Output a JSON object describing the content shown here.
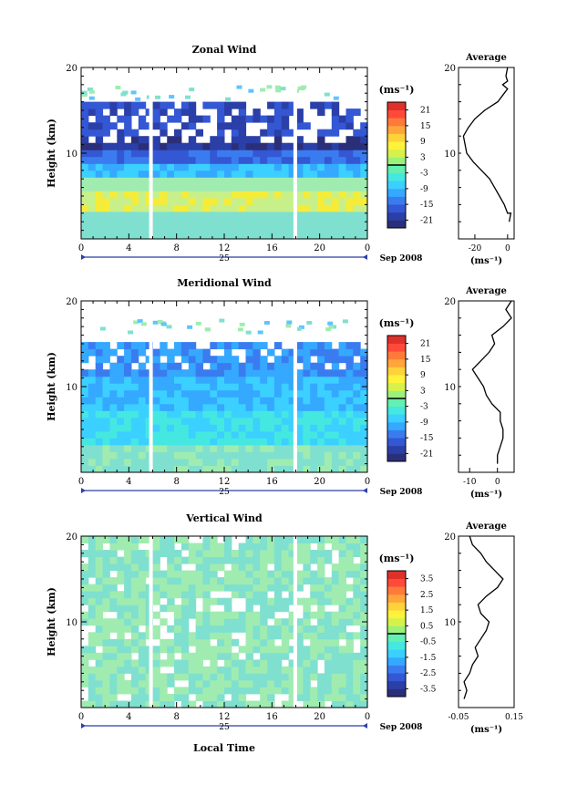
{
  "figure": {
    "xlabel": "Local Time",
    "date_label": "Sep 2008",
    "day_label": "25",
    "unit_label": "(ms⁻¹)",
    "average_title": "Average",
    "ylabel": "Height (km)",
    "fill_colors": [
      "#5fc4ff",
      "#7fe0d0",
      "#a0ecb0",
      "#c7f08a",
      "#f5ec3a"
    ],
    "colormap": [
      "#2b2f7a",
      "#2b3fa8",
      "#3457d4",
      "#3a7cf0",
      "#35a8ff",
      "#3bd0ff",
      "#45e8e0",
      "#63f0b0",
      "#9af27a",
      "#d6f24a",
      "#fff23a",
      "#ffd23a",
      "#ffa63a",
      "#ff7a3a",
      "#ff4a3a",
      "#e0302a"
    ]
  },
  "chart_data": [
    {
      "type": "heatmap",
      "title": "Zonal Wind",
      "xlim": [
        0,
        24
      ],
      "ylim": [
        0,
        20
      ],
      "x_ticks": [
        "0",
        "4",
        "8",
        "12",
        "16",
        "20",
        "0"
      ],
      "y_ticks": [
        "20",
        "10"
      ],
      "colorbar_ticks": [
        "21",
        "15",
        "9",
        "3",
        "-3",
        "-9",
        "-15",
        "-21"
      ],
      "colorbar_range": [
        -24,
        24
      ],
      "zero_line": 0,
      "profile": {
        "xlim": [
          -30,
          4
        ],
        "x_ticks": [
          "-20",
          "0"
        ],
        "points": [
          [
            1,
            2
          ],
          [
            2,
            3
          ],
          [
            0,
            3
          ],
          [
            -2,
            4
          ],
          [
            -5,
            5
          ],
          [
            -8,
            6
          ],
          [
            -11,
            7
          ],
          [
            -16,
            8
          ],
          [
            -21,
            9
          ],
          [
            -25,
            10
          ],
          [
            -26,
            11
          ],
          [
            -27,
            12
          ],
          [
            -24,
            13
          ],
          [
            -20,
            14
          ],
          [
            -14,
            15
          ],
          [
            -6,
            16
          ],
          [
            -2,
            17
          ],
          [
            0,
            17.5
          ],
          [
            -3,
            18
          ],
          [
            0,
            18.4
          ],
          [
            -1,
            19
          ],
          [
            0,
            20
          ]
        ]
      }
    },
    {
      "type": "heatmap",
      "title": "Meridional Wind",
      "xlim": [
        0,
        24
      ],
      "ylim": [
        0,
        20
      ],
      "x_ticks": [
        "0",
        "4",
        "8",
        "12",
        "16",
        "20",
        "0"
      ],
      "y_ticks": [
        "20",
        "10"
      ],
      "colorbar_ticks": [
        "21",
        "15",
        "9",
        "3",
        "-3",
        "-9",
        "-15",
        "-21"
      ],
      "colorbar_range": [
        -24,
        24
      ],
      "zero_line": 0,
      "profile": {
        "xlim": [
          -14,
          6
        ],
        "x_ticks": [
          "-10",
          "0"
        ],
        "points": [
          [
            0,
            1
          ],
          [
            0,
            2
          ],
          [
            1,
            3
          ],
          [
            2,
            4
          ],
          [
            2,
            5
          ],
          [
            1,
            6
          ],
          [
            1,
            7
          ],
          [
            -2,
            8
          ],
          [
            -4,
            9
          ],
          [
            -5,
            10
          ],
          [
            -7,
            11
          ],
          [
            -9,
            12
          ],
          [
            -6,
            13
          ],
          [
            -3,
            14
          ],
          [
            -1,
            15
          ],
          [
            -2,
            16
          ],
          [
            2,
            17
          ],
          [
            5,
            18
          ],
          [
            3,
            19
          ],
          [
            5,
            20
          ]
        ]
      }
    },
    {
      "type": "heatmap",
      "title": "Vertical Wind",
      "xlim": [
        0,
        24
      ],
      "ylim": [
        0,
        20
      ],
      "x_ticks": [
        "0",
        "4",
        "8",
        "12",
        "16",
        "20",
        "0"
      ],
      "y_ticks": [
        "20",
        "10"
      ],
      "colorbar_ticks": [
        "3.5",
        "2.5",
        "1.5",
        "0.5",
        "-0.5",
        "-1.5",
        "-2.5",
        "-3.5"
      ],
      "colorbar_range": [
        -4,
        4
      ],
      "zero_line": 0,
      "profile": {
        "xlim": [
          -0.05,
          0.15
        ],
        "x_ticks": [
          "-0.05",
          "0.15"
        ],
        "points": [
          [
            -0.03,
            1
          ],
          [
            -0.02,
            2
          ],
          [
            -0.03,
            3
          ],
          [
            -0.01,
            4
          ],
          [
            0.0,
            5
          ],
          [
            0.02,
            6
          ],
          [
            0.01,
            7
          ],
          [
            0.03,
            8
          ],
          [
            0.05,
            9
          ],
          [
            0.06,
            10
          ],
          [
            0.03,
            11
          ],
          [
            0.02,
            12
          ],
          [
            0.05,
            13
          ],
          [
            0.09,
            14
          ],
          [
            0.11,
            15
          ],
          [
            0.08,
            16
          ],
          [
            0.05,
            17
          ],
          [
            0.03,
            18
          ],
          [
            0.0,
            19
          ],
          [
            -0.01,
            20
          ]
        ]
      }
    }
  ]
}
